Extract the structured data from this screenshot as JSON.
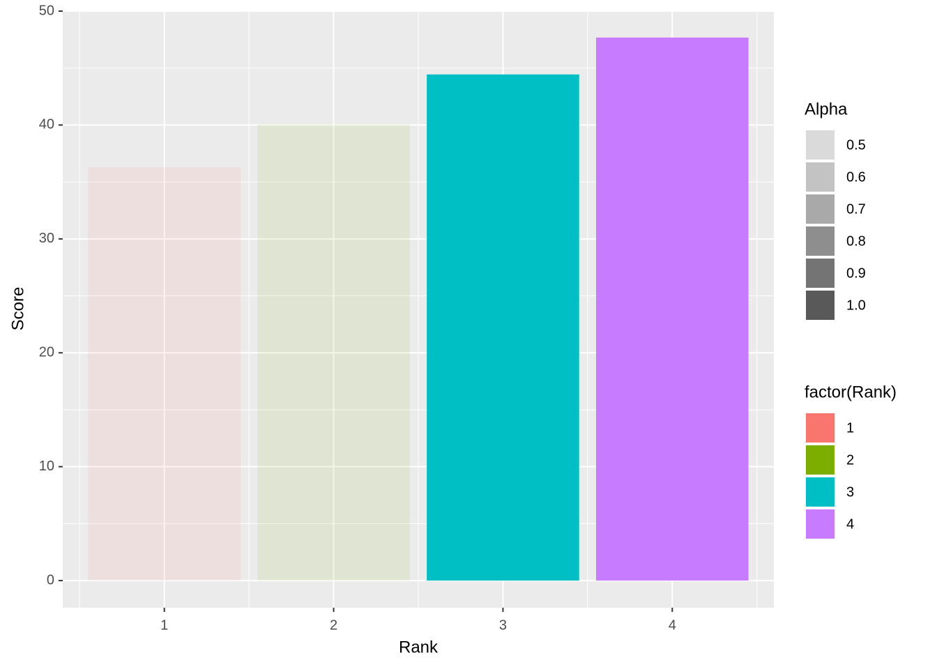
{
  "chart_data": {
    "type": "bar",
    "x_label": "Rank",
    "y_label": "Score",
    "categories": [
      "1",
      "2",
      "3",
      "4"
    ],
    "values": [
      36.3,
      40.05,
      44.44,
      47.68
    ],
    "colors": [
      "#F8766D",
      "#7CAE00",
      "#00BFC4",
      "#C77CFF"
    ],
    "opacity": [
      0.1,
      0.1,
      1,
      1
    ],
    "ylim": [
      -2.38,
      50.06
    ],
    "yticks": [
      0,
      10,
      20,
      30,
      40,
      50
    ],
    "grid": true,
    "legends": [
      {
        "title": "Alpha",
        "labels": [
          "0.5",
          "0.6",
          "0.7",
          "0.8",
          "0.9",
          "1.0"
        ],
        "colors": [
          "#DADADA",
          "#C3C3C3",
          "#A9A9A9",
          "#8E8E8E",
          "#747474",
          "#595959"
        ]
      },
      {
        "title": "factor(Rank)",
        "labels": [
          "1",
          "2",
          "3",
          "4"
        ],
        "colors": [
          "#F8766D",
          "#7CAE00",
          "#00BFC4",
          "#C77CFF"
        ]
      }
    ]
  }
}
